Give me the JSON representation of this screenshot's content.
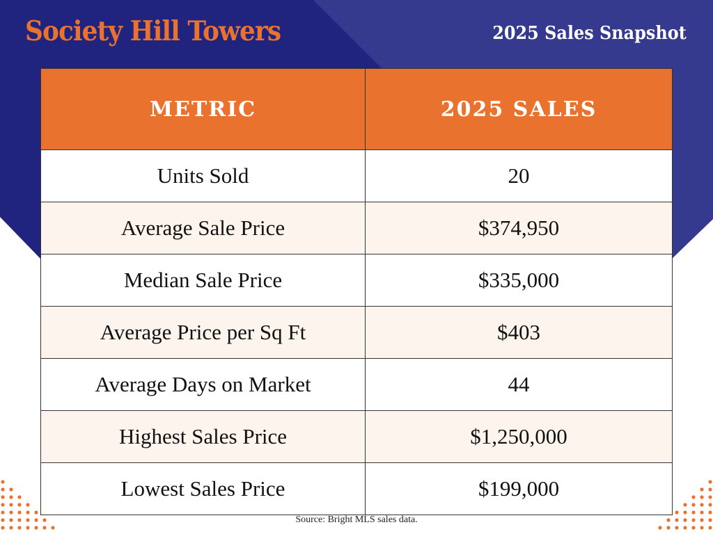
{
  "header": {
    "title": "Society Hill Towers",
    "subtitle": "2025 Sales Snapshot"
  },
  "table": {
    "columns": [
      "METRIC",
      "2025 SALES"
    ],
    "rows": [
      {
        "metric": "Units Sold",
        "value": "20"
      },
      {
        "metric": "Average Sale Price",
        "value": "$374,950"
      },
      {
        "metric": "Median Sale Price",
        "value": "$335,000"
      },
      {
        "metric": "Average Price per Sq Ft",
        "value": "$403"
      },
      {
        "metric": "Average Days on Market",
        "value": "44"
      },
      {
        "metric": "Highest Sales Price",
        "value": "$1,250,000"
      },
      {
        "metric": "Lowest Sales Price",
        "value": "$199,000"
      }
    ]
  },
  "footer": {
    "source": "Source: Bright MLS sales data."
  },
  "colors": {
    "navy": "#20247f",
    "navy_light": "#363a8f",
    "orange": "#e9722e",
    "row_alt": "#fdf4ee"
  }
}
